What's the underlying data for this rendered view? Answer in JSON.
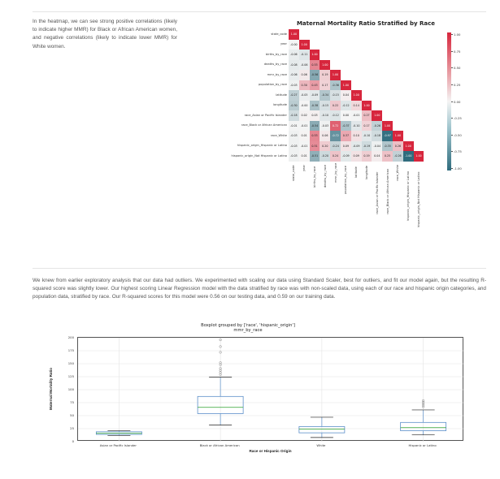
{
  "text": {
    "intro": "In the heatmap, we can see strong positive correlations (likely to indicate higher MMR) for Black or African American women, and negative correlations (likely to indicate lower MMR) for White women.",
    "paragraph2": "We knew from earlier exploratory analysis that our data had outliers. We experimented with scaling our data using Standard Scaler, best for outliers, and fit our model again, but the resulting R-squared score was slightly lower. Our highest scoring Linear Regression model with the data stratified by race was with non-scaled data, using each of our race and hispanic origin categories, and population data, stratified by race. Our R-squared scores for this model were 0.56 on our testing data, and 0.59 on our training data."
  },
  "chart_data": [
    {
      "type": "heatmap",
      "title": "Maternal Mortality Ratio Stratified by Race",
      "labels": [
        "state_code",
        "year",
        "births_by_race",
        "deaths_by_race",
        "mmr_by_race",
        "population_by_race",
        "latitude",
        "longitude",
        "race_Asian or Pacific Islander",
        "race_Black or African American",
        "race_White",
        "hispanic_origin_Hispanic or Latino",
        "hispanic_origin_Not Hispanic or Latino"
      ],
      "values": [
        [
          "1.00"
        ],
        [
          "-0.00",
          "1.00"
        ],
        [
          "-0.06",
          "-0.11",
          "1.00"
        ],
        [
          "-0.08",
          "-0.06",
          "0.53",
          "1.00"
        ],
        [
          "-0.06",
          "0.06",
          "-0.56",
          "0.19",
          "1.00"
        ],
        [
          "-0.03",
          "0.30",
          "0.43",
          "0.17",
          "-0.36",
          "1.00"
        ],
        [
          "-0.27",
          "-0.05",
          "-0.09",
          "-0.34",
          "-0.15",
          "0.04",
          "1.00"
        ],
        [
          "-0.30",
          "-0.00",
          "-0.38",
          "-0.15",
          "0.22",
          "-0.12",
          "0.14",
          "1.00"
        ],
        [
          "-0.18",
          "0.02",
          "0.03",
          "-0.10",
          "-0.12",
          "0.00",
          "-0.01",
          "0.27",
          "1.00"
        ],
        [
          "-0.01",
          "-0.01",
          "-0.54",
          "-0.03",
          "0.72",
          "-0.37",
          "-0.10",
          "0.17",
          "-0.26",
          "1.00"
        ],
        [
          "-0.03",
          "0.01",
          "0.53",
          "0.06",
          "-0.72",
          "0.37",
          "0.10",
          "-0.10",
          "-0.18",
          "-0.97",
          "1.00"
        ],
        [
          "-0.03",
          "-0.01",
          "0.51",
          "0.20",
          "-0.24",
          "0.09",
          "-0.09",
          "-0.19",
          "-0.04",
          "-0.35",
          "0.26",
          "1.00"
        ],
        [
          "-0.03",
          "0.01",
          "-0.51",
          "-0.20",
          "0.24",
          "-0.09",
          "0.09",
          "0.19",
          "0.04",
          "0.25",
          "-0.26",
          "-1.00",
          "1.00"
        ]
      ],
      "colorbar_ticks": [
        "1.00",
        "0.75",
        "0.50",
        "0.25",
        "0.00",
        "-0.25",
        "-0.50",
        "-0.75",
        "-1.00"
      ],
      "colorbar_range": [
        -1,
        1
      ]
    },
    {
      "type": "box",
      "title": "Boxplot grouped by ['race', 'hispanic_origin']",
      "subtitle": "mmr_by_race",
      "xlabel": "Race or Hispanic Origin",
      "ylabel": "Maternal Mortality Ratio",
      "ylim": [
        0,
        200
      ],
      "yticks": [
        "0",
        "25",
        "50",
        "75",
        "100",
        "125",
        "150",
        "175",
        "200"
      ],
      "categories": [
        "Asian or Pacific Islander",
        "Black or African American",
        "White",
        "Hispanic or Latino"
      ],
      "boxes": [
        {
          "whisker_low": 12,
          "q1": 14,
          "median": 16,
          "q3": 19,
          "whisker_high": 21,
          "outliers": []
        },
        {
          "whisker_low": 32,
          "q1": 54,
          "median": 66,
          "q3": 87,
          "whisker_high": 124,
          "outliers": [
            129,
            133,
            137,
            141,
            148,
            152,
            172,
            183,
            196
          ]
        },
        {
          "whisker_low": 8,
          "q1": 17,
          "median": 24,
          "q3": 29,
          "whisker_high": 47,
          "outliers": []
        },
        {
          "whisker_low": 13,
          "q1": 21,
          "median": 27,
          "q3": 37,
          "whisker_high": 61,
          "outliers": [
            67,
            70,
            73,
            76,
            79
          ]
        }
      ]
    }
  ],
  "colors": {
    "heat_pos": "#d7263d",
    "heat_neg": "#2f6c7d",
    "box": "#5b8fc9",
    "median": "#2ca02c",
    "outlier": "#888888"
  }
}
